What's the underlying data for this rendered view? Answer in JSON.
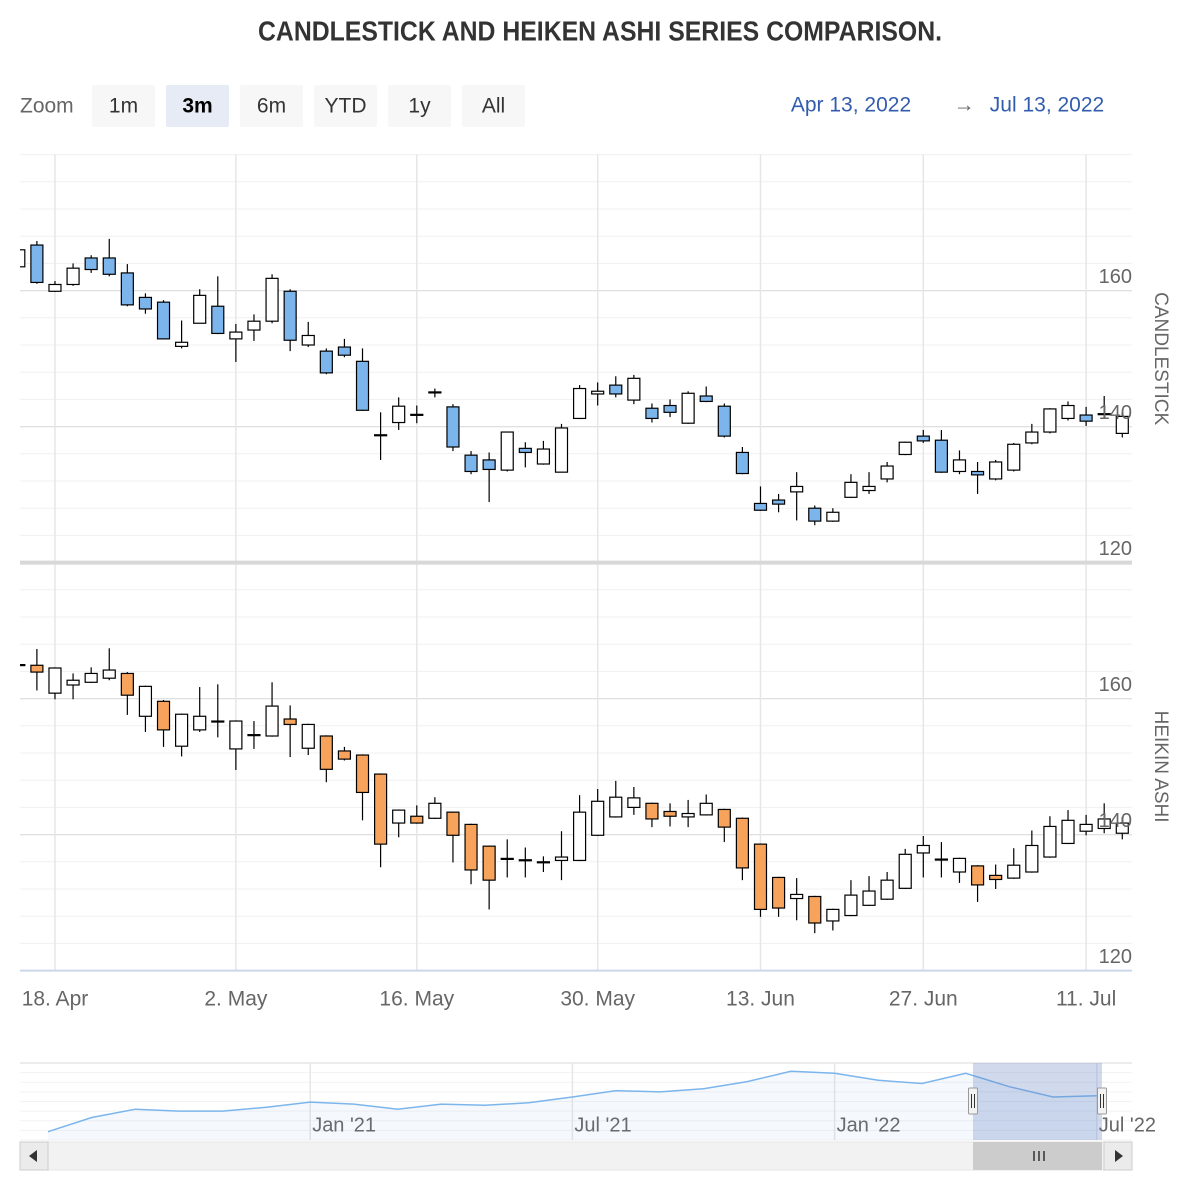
{
  "title": "CANDLESTICK AND HEIKEN ASHI SERIES COMPARISON.",
  "range_selector": {
    "label": "Zoom",
    "buttons": [
      "1m",
      "3m",
      "6m",
      "YTD",
      "1y",
      "All"
    ],
    "selected": 1,
    "from": "Apr 13, 2022",
    "arrow": "→",
    "to": "Jul 13, 2022"
  },
  "chart_data": [
    {
      "type": "candlestick",
      "y_title": "CANDLESTICK",
      "up_color": "#ffffff",
      "color": "#7cb5ec",
      "line_color": "#000000",
      "ylim": [
        120,
        180
      ],
      "yticks": [
        120,
        140,
        160
      ],
      "minor_tick_interval": 4,
      "grid": true,
      "open": [
        163.5,
        166.7,
        159.9,
        160.9,
        164.8,
        164.8,
        162.6,
        159.0,
        158.3,
        151.8,
        155.2,
        157.7,
        152.9,
        154.2,
        155.5,
        159.9,
        152.0,
        151.1,
        151.7,
        149.6,
        138.7,
        140.6,
        141.7,
        145.0,
        142.9,
        135.8,
        135.1,
        133.6,
        136.8,
        134.5,
        133.3,
        141.2,
        144.8,
        146.1,
        143.9,
        142.7,
        143.1,
        140.5,
        144.5,
        143.0,
        136.2,
        128.7,
        129.2,
        130.4,
        128.0,
        126.1,
        129.6,
        130.6,
        132.3,
        135.9,
        138.6,
        138.0,
        133.4,
        133.4,
        132.3,
        133.6,
        137.6,
        139.2,
        141.2,
        141.7,
        141.8,
        139.0
      ],
      "high": [
        166.5,
        167.3,
        161.4,
        164.0,
        165.2,
        167.6,
        163.9,
        159.6,
        158.6,
        155.6,
        160.2,
        162.1,
        155.1,
        156.5,
        162.4,
        160.2,
        155.4,
        151.5,
        152.9,
        151.5,
        142.1,
        144.3,
        143.1,
        145.6,
        143.3,
        136.4,
        136.2,
        139.2,
        137.7,
        137.9,
        140.4,
        146.1,
        146.5,
        147.4,
        147.6,
        143.4,
        144.0,
        145.2,
        145.9,
        143.4,
        137.0,
        131.2,
        130.1,
        133.3,
        128.4,
        128.0,
        133.0,
        133.3,
        134.8,
        137.8,
        139.5,
        139.5,
        136.5,
        134.8,
        135.1,
        137.6,
        140.4,
        142.7,
        143.7,
        142.9,
        144.5,
        142.1
      ],
      "low": [
        162.8,
        161.0,
        159.8,
        160.7,
        162.6,
        162.1,
        157.7,
        156.6,
        152.9,
        151.5,
        155.2,
        153.6,
        149.5,
        152.6,
        155.2,
        151.1,
        151.7,
        147.7,
        150.2,
        142.3,
        135.1,
        139.5,
        140.5,
        144.3,
        136.4,
        133.0,
        128.9,
        133.4,
        134.0,
        134.4,
        133.3,
        141.1,
        143.1,
        144.3,
        143.3,
        140.6,
        141.4,
        140.4,
        143.6,
        138.4,
        133.0,
        127.6,
        127.4,
        126.2,
        125.5,
        126.0,
        129.5,
        130.1,
        131.8,
        135.8,
        137.6,
        133.2,
        133.0,
        130.1,
        132.1,
        133.4,
        137.4,
        139.0,
        140.9,
        140.1,
        141.2,
        138.4
      ],
      "close": [
        166.0,
        161.2,
        160.9,
        163.3,
        163.1,
        162.4,
        157.9,
        157.3,
        152.9,
        152.4,
        159.3,
        153.7,
        153.9,
        155.5,
        161.8,
        152.7,
        153.4,
        147.9,
        150.5,
        142.4,
        138.8,
        143.0,
        141.8,
        145.1,
        137.0,
        133.4,
        133.7,
        139.2,
        136.2,
        136.7,
        139.8,
        145.6,
        145.2,
        144.8,
        147.1,
        141.2,
        142.1,
        144.9,
        143.7,
        138.6,
        133.1,
        127.7,
        128.6,
        131.2,
        126.1,
        127.4,
        131.8,
        131.2,
        134.2,
        137.7,
        137.9,
        133.3,
        135.1,
        132.9,
        134.8,
        137.4,
        139.2,
        142.6,
        143.1,
        140.8,
        141.9,
        141.5
      ]
    },
    {
      "type": "heikinashi",
      "y_title": "HEIKIN ASHI",
      "up_color": "#ffffff",
      "color": "#f7a35c",
      "line_color": "#000000",
      "ylim": [
        120,
        180
      ],
      "yticks": [
        120,
        140,
        160
      ],
      "minor_tick_interval": 4,
      "grid": true,
      "categories": [
        null,
        null,
        "18. Apr",
        null,
        null,
        null,
        null,
        null,
        null,
        null,
        null,
        null,
        "2. May",
        null,
        null,
        null,
        null,
        null,
        null,
        null,
        null,
        null,
        "16. May",
        null,
        null,
        null,
        null,
        null,
        null,
        null,
        null,
        null,
        "30. May",
        null,
        null,
        null,
        null,
        null,
        null,
        null,
        null,
        "13. Jun",
        null,
        null,
        null,
        null,
        null,
        null,
        null,
        null,
        "27. Jun",
        null,
        null,
        null,
        null,
        null,
        null,
        null,
        null,
        "11. Jul",
        null,
        null
      ],
      "open": [
        164.9,
        164.9,
        160.8,
        162.0,
        162.4,
        163.0,
        163.7,
        157.4,
        159.6,
        153.0,
        155.4,
        156.6,
        152.6,
        154.6,
        154.5,
        157.0,
        152.7,
        154.5,
        152.3,
        151.7,
        148.9,
        141.7,
        142.7,
        142.4,
        143.3,
        141.5,
        138.3,
        136.4,
        136.2,
        135.9,
        136.2,
        136.2,
        139.9,
        142.6,
        144.0,
        144.6,
        143.4,
        142.6,
        142.9,
        143.7,
        142.4,
        138.6,
        133.7,
        130.6,
        130.9,
        127.3,
        128.1,
        129.6,
        130.5,
        132.1,
        137.3,
        136.3,
        134.5,
        135.4,
        134.0,
        133.6,
        134.5,
        136.7,
        138.7,
        140.5,
        140.9,
        140.2
      ],
      "high": [
        165.1,
        167.3,
        164.6,
        163.7,
        164.6,
        167.4,
        163.9,
        161.9,
        159.8,
        157.8,
        161.7,
        162.1,
        156.8,
        156.7,
        162.4,
        159.0,
        156.3,
        154.6,
        152.9,
        151.8,
        149.0,
        143.7,
        144.3,
        145.5,
        143.4,
        141.6,
        138.4,
        139.3,
        138.1,
        136.8,
        140.5,
        145.8,
        146.7,
        147.9,
        147.0,
        144.7,
        144.6,
        145.1,
        145.9,
        143.8,
        142.5,
        138.7,
        133.8,
        133.6,
        131.0,
        129.1,
        133.3,
        133.9,
        134.5,
        137.9,
        139.8,
        138.9,
        136.6,
        135.5,
        135.6,
        138.0,
        140.6,
        142.7,
        143.6,
        142.9,
        144.6,
        142.6
      ],
      "low": [
        164.8,
        161.2,
        159.9,
        159.9,
        162.3,
        162.7,
        157.6,
        155.1,
        152.9,
        151.5,
        155.1,
        154.3,
        149.5,
        152.6,
        154.4,
        151.4,
        151.7,
        147.7,
        150.9,
        142.1,
        135.2,
        139.6,
        141.6,
        142.3,
        135.9,
        132.7,
        129.0,
        133.7,
        133.7,
        134.5,
        133.3,
        136.1,
        139.8,
        142.5,
        142.9,
        141.1,
        141.2,
        141.1,
        142.8,
        138.9,
        133.3,
        127.9,
        127.9,
        127.4,
        125.5,
        125.9,
        128.0,
        129.5,
        130.4,
        132.0,
        133.7,
        133.7,
        132.9,
        130.1,
        132.0,
        133.5,
        134.4,
        136.6,
        138.6,
        139.9,
        140.2,
        139.3
      ],
      "close": [
        165.0,
        163.9,
        164.5,
        162.7,
        163.7,
        164.2,
        160.5,
        161.8,
        155.4,
        157.7,
        157.4,
        156.7,
        156.7,
        154.7,
        158.9,
        156.2,
        156.2,
        149.6,
        151.1,
        146.2,
        138.6,
        143.6,
        141.7,
        144.6,
        139.9,
        134.8,
        133.3,
        136.5,
        136.3,
        136.0,
        136.7,
        143.3,
        144.9,
        145.5,
        145.4,
        142.3,
        142.7,
        143.1,
        144.6,
        141.1,
        135.1,
        129.0,
        129.2,
        131.2,
        127.0,
        129.0,
        131.1,
        131.7,
        133.3,
        137.1,
        138.4,
        136.4,
        136.5,
        132.6,
        133.4,
        135.5,
        138.4,
        141.2,
        142.1,
        141.5,
        142.3,
        141.7
      ]
    }
  ],
  "navigator": {
    "type": "line",
    "color": "#7cb5ec",
    "ylim": [
      65,
      185
    ],
    "categories": [
      null,
      null,
      null,
      null,
      null,
      null,
      "Jan '21",
      null,
      null,
      null,
      null,
      null,
      "Jul '21",
      null,
      null,
      null,
      null,
      null,
      "Jan '22",
      null,
      null,
      null,
      null,
      null,
      "Jul '22"
    ],
    "values": [
      78,
      100,
      113,
      110,
      110,
      116,
      124,
      121,
      113,
      121,
      119,
      123,
      132,
      142,
      140,
      145,
      156,
      172,
      169,
      158,
      153,
      169,
      148,
      132,
      134
    ]
  }
}
